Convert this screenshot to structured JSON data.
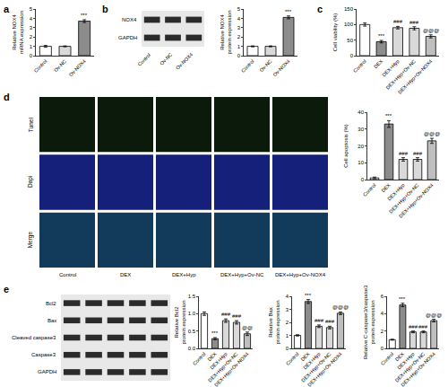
{
  "panels": [
    "a",
    "b",
    "c",
    "d",
    "e"
  ],
  "chart_data": [
    {
      "type": "bar",
      "panel": "a",
      "ylabel": [
        "Relative NOX4",
        "mRNA expression"
      ],
      "categories": [
        "Control",
        "Ov-NC",
        "Ov-NOX4"
      ],
      "values": [
        1,
        1,
        3.7
      ],
      "errors": [
        0.1,
        0.05,
        0.15
      ],
      "annotations": [
        null,
        null,
        "***"
      ],
      "colors": [
        "#ffffff",
        "#d9d9d9",
        "#8c8c8c"
      ],
      "ylim": [
        0,
        5
      ],
      "yticks": [
        0,
        1,
        2,
        3,
        4,
        5
      ],
      "grid": false
    },
    {
      "type": "bar",
      "panel": "b",
      "ylabel": [
        "Relative NOX4",
        "protein expression"
      ],
      "categories": [
        "Control",
        "Ov-NC",
        "Ov-NOX4"
      ],
      "values": [
        1,
        1,
        4.1
      ],
      "errors": [
        0.05,
        0.05,
        0.15
      ],
      "annotations": [
        null,
        null,
        "***"
      ],
      "colors": [
        "#ffffff",
        "#d9d9d9",
        "#8c8c8c"
      ],
      "ylim": [
        0,
        5
      ],
      "yticks": [
        0,
        1,
        2,
        3,
        4,
        5
      ],
      "grid": false
    },
    {
      "type": "bar",
      "panel": "c",
      "ylabel": [
        "Cell viability (%)"
      ],
      "categories": [
        "Control",
        "DEX",
        "DEX+Hyp",
        "DEX+Hyp+Ov-NC",
        "DEX+Hyp+Ov-NOX4"
      ],
      "values": [
        100,
        45,
        90,
        88,
        62
      ],
      "errors": [
        5,
        4,
        4,
        5,
        5
      ],
      "annotations": [
        null,
        "***",
        "###",
        "###",
        "@@@"
      ],
      "colors": [
        "#ffffff",
        "#8c8c8c",
        "#d9d9d9",
        "#d9d9d9",
        "#bfbfbf"
      ],
      "ylim": [
        0,
        150
      ],
      "yticks": [
        0,
        50,
        100,
        150
      ],
      "grid": false
    },
    {
      "type": "bar",
      "panel": "d",
      "ylabel": [
        "Cell apoptosis (%)"
      ],
      "categories": [
        "Control",
        "DEX",
        "DEX+Hyp",
        "DEX+Hyp+Ov-NC",
        "DEX+Hyp+Ov-NOX4"
      ],
      "values": [
        1,
        33,
        12,
        12,
        23
      ],
      "errors": [
        0.5,
        2,
        1,
        1,
        1.5
      ],
      "annotations": [
        null,
        "***",
        "###",
        "###",
        "@@@"
      ],
      "colors": [
        "#ffffff",
        "#8c8c8c",
        "#d9d9d9",
        "#d9d9d9",
        "#bfbfbf"
      ],
      "ylim": [
        0,
        40
      ],
      "yticks": [
        0,
        10,
        20,
        30,
        40
      ],
      "grid": false
    },
    {
      "type": "bar",
      "panel": "e",
      "ylabel": [
        "Relative Bcl2",
        "protein expression"
      ],
      "categories": [
        "Control",
        "DEX",
        "DEX+Hyp",
        "DEX+Hyp+Ov-NC",
        "DEX+Hyp+Ov-NOX4"
      ],
      "values": [
        1.0,
        0.28,
        0.8,
        0.75,
        0.42
      ],
      "errors": [
        0.05,
        0.03,
        0.05,
        0.05,
        0.05
      ],
      "annotations": [
        null,
        "***",
        "###",
        "###",
        "@@"
      ],
      "colors": [
        "#ffffff",
        "#8c8c8c",
        "#d9d9d9",
        "#d9d9d9",
        "#bfbfbf"
      ],
      "ylim": [
        0,
        1.5
      ],
      "yticks": [
        {
          "value": 0,
          "label": "0.0"
        },
        0.5,
        {
          "value": 1,
          "label": "1.0"
        },
        1.5
      ],
      "grid": false
    },
    {
      "type": "bar",
      "panel": "e",
      "ylabel": [
        "Relative Bax",
        "protein expression"
      ],
      "categories": [
        "Control",
        "DEX",
        "DEX+Hyp",
        "DEX+Hyp+Ov-NC",
        "DEX+Hyp+Ov-NOX4"
      ],
      "values": [
        1,
        3.6,
        1.7,
        1.6,
        2.7
      ],
      "errors": [
        0.05,
        0.15,
        0.1,
        0.1,
        0.1
      ],
      "annotations": [
        null,
        "***",
        "###",
        "###",
        "@@@"
      ],
      "colors": [
        "#ffffff",
        "#8c8c8c",
        "#d9d9d9",
        "#d9d9d9",
        "#bfbfbf"
      ],
      "ylim": [
        0,
        4
      ],
      "yticks": [
        0,
        1,
        2,
        3,
        4
      ],
      "grid": false
    },
    {
      "type": "bar",
      "panel": "e",
      "ylabel": [
        "Relative C-caspase3/caspase3",
        "protein expression"
      ],
      "categories": [
        "Control",
        "DEX",
        "DEX+Hyp",
        "DEX+Hyp+Ov-NC",
        "DEX+Hyp+Ov-NOX4"
      ],
      "values": [
        1,
        5,
        1.9,
        1.9,
        3.2
      ],
      "errors": [
        0.05,
        0.2,
        0.1,
        0.1,
        0.15
      ],
      "annotations": [
        null,
        "***",
        "###",
        "###",
        "@@@"
      ],
      "colors": [
        "#ffffff",
        "#8c8c8c",
        "#d9d9d9",
        "#d9d9d9",
        "#bfbfbf"
      ],
      "ylim": [
        0,
        6
      ],
      "yticks": [
        0,
        2,
        4,
        6
      ],
      "grid": false
    }
  ],
  "blots": [
    {
      "panel": "b",
      "rows": [
        "NOX4",
        "GAPDH"
      ],
      "lanes": [
        "Control",
        "Ov-NC",
        "Ov-NOX4"
      ]
    },
    {
      "panel": "e",
      "rows": [
        "Bcl2",
        "Bax",
        "Cleaved caspase3",
        "Caspase3",
        "GAPDH"
      ]
    }
  ],
  "micrographs": {
    "panel": "d",
    "rows": [
      "Tunel",
      "Dapi",
      "Merge"
    ],
    "columns": [
      "Control",
      "DEX",
      "DEX+Hyp",
      "DEX+Hyp+Ov-NC",
      "DEX+Hyp+Ov-NOX4"
    ]
  }
}
